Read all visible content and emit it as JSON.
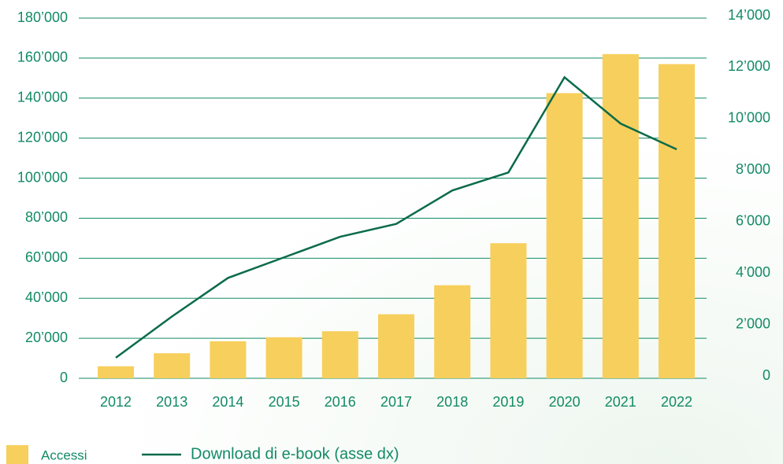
{
  "chart_data": {
    "type": "bar",
    "categories": [
      "2012",
      "2013",
      "2014",
      "2015",
      "2016",
      "2017",
      "2018",
      "2019",
      "2020",
      "2021",
      "2022"
    ],
    "series": [
      {
        "name": "Accessi",
        "color": "#f7cf5c",
        "type": "bar",
        "values": [
          6000,
          12500,
          18500,
          20500,
          23500,
          32000,
          46500,
          67500,
          142500,
          162000,
          157000
        ]
      },
      {
        "name": "Download di e-book (asse dx)",
        "color": "#0b6b4a",
        "type": "line",
        "axis": "y2",
        "values": [
          800,
          2400,
          3900,
          4700,
          5500,
          6000,
          7300,
          8000,
          11700,
          9900,
          8900
        ]
      }
    ],
    "ylim": [
      0,
      180000
    ],
    "yticks": [
      0,
      {
        "value": 20000,
        "label": "20’000"
      },
      {
        "value": 40000,
        "label": "40’000"
      },
      {
        "value": 60000,
        "label": "60’000"
      },
      {
        "value": 80000,
        "label": "80’000"
      },
      {
        "value": 100000,
        "label": "100’000"
      },
      {
        "value": 120000,
        "label": "120’000"
      },
      {
        "value": 140000,
        "label": "140’000"
      },
      {
        "value": 160000,
        "label": "160’000"
      },
      {
        "value": 180000,
        "label": "180’000"
      }
    ],
    "y2lim": [
      0,
      14000
    ],
    "y2ticks": [
      0,
      {
        "value": 2000,
        "label": "2’000"
      },
      {
        "value": 4000,
        "label": "4’000"
      },
      {
        "value": 6000,
        "label": "6’000"
      },
      {
        "value": 8000,
        "label": "8’000"
      },
      {
        "value": 10000,
        "label": "10’000"
      },
      {
        "value": 12000,
        "label": "12’000"
      },
      {
        "value": 14000,
        "label": "14’000"
      }
    ],
    "grid": true
  }
}
